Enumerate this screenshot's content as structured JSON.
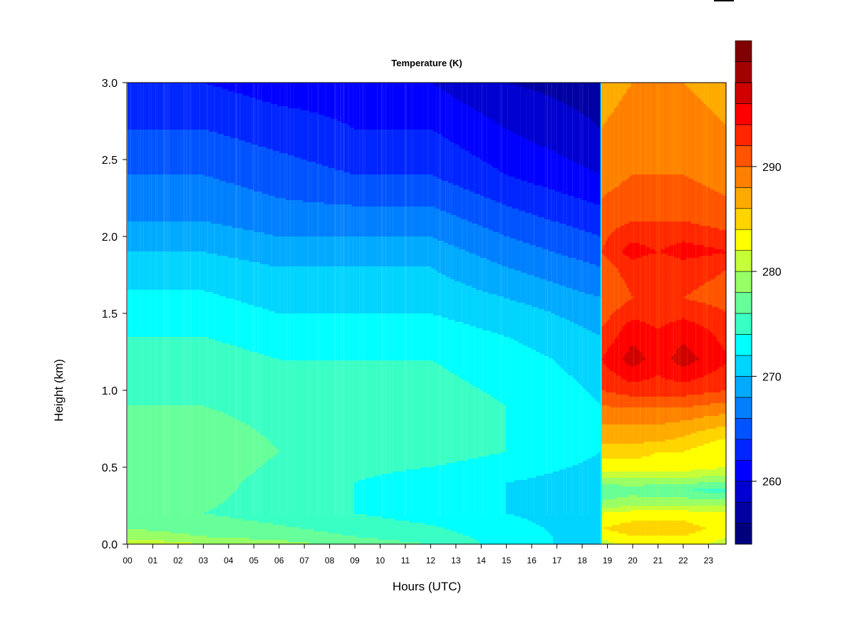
{
  "chart_data": {
    "type": "heatmap",
    "title": "Temperature (K)",
    "xlabel": "Hours (UTC)",
    "ylabel": "Height (km)",
    "x_ticks": [
      "00",
      "01",
      "02",
      "03",
      "04",
      "05",
      "06",
      "07",
      "08",
      "09",
      "10",
      "11",
      "12",
      "13",
      "14",
      "15",
      "16",
      "17",
      "18",
      "19",
      "20",
      "21",
      "22",
      "23"
    ],
    "y_ticks": [
      "0.0",
      "0.5",
      "1.0",
      "1.5",
      "2.0",
      "2.5",
      "3.0"
    ],
    "xlim": [
      0,
      23.85
    ],
    "ylim": [
      0,
      3.0
    ],
    "colorbar": {
      "ticks": [
        260,
        270,
        280,
        290
      ],
      "range": [
        254,
        298
      ],
      "step": 2,
      "colors": [
        "#00007f",
        "#0000a3",
        "#0000d0",
        "#0000ff",
        "#0026ff",
        "#0054ff",
        "#0080ff",
        "#00aaff",
        "#00d4ff",
        "#00ffff",
        "#3affc4",
        "#66ff99",
        "#99ff66",
        "#c4ff3a",
        "#ffff00",
        "#ffd400",
        "#ffaa00",
        "#ff8000",
        "#ff5400",
        "#ff2600",
        "#ff0000",
        "#d00000",
        " #a30000",
        "#7f0000"
      ]
    },
    "fields": [
      {
        "x_range": [
          0,
          18.75
        ],
        "heights_km": [
          0.0,
          0.05,
          0.2,
          0.4,
          0.6,
          0.9,
          1.2,
          1.5,
          1.8,
          2.1,
          2.4,
          2.7,
          3.0
        ],
        "time_h": [
          0,
          3,
          6,
          9,
          12,
          15,
          18.75
        ],
        "temperature_K": [
          [
            282,
            280,
            279,
            277,
            276,
            273,
            271
          ],
          [
            279,
            278,
            277,
            276,
            275,
            273,
            271
          ],
          [
            276,
            276,
            275,
            274,
            273,
            272,
            271
          ],
          [
            277,
            277,
            275,
            274,
            273,
            272,
            271
          ],
          [
            278,
            278,
            276,
            275,
            275,
            274,
            272
          ],
          [
            276,
            276,
            275,
            275,
            275,
            274,
            272
          ],
          [
            275,
            275,
            274,
            274,
            274,
            273,
            271
          ],
          [
            273,
            273,
            272,
            272,
            272,
            271,
            269
          ],
          [
            271,
            271,
            270,
            270,
            270,
            268,
            266
          ],
          [
            268,
            268,
            267,
            267,
            267,
            265,
            263
          ],
          [
            266,
            266,
            265,
            264,
            264,
            262,
            260
          ],
          [
            264,
            264,
            263,
            262,
            262,
            260,
            258
          ],
          [
            262,
            262,
            261,
            261,
            260,
            258,
            257
          ]
        ]
      },
      {
        "x_range": [
          18.75,
          23.85
        ],
        "heights_km": [
          0.0,
          0.1,
          0.2,
          0.25,
          0.35,
          0.45,
          0.5,
          0.6,
          0.7,
          0.85,
          1.0,
          1.2,
          1.4,
          1.6,
          1.8,
          1.9,
          2.1,
          2.4,
          2.7,
          3.0
        ],
        "time_h": [
          18.75,
          20,
          21,
          22,
          23.85
        ],
        "temperature_K": [
          [
            281,
            283,
            283,
            283,
            281
          ],
          [
            284,
            285,
            285,
            285,
            283
          ],
          [
            282,
            283,
            283,
            283,
            282
          ],
          [
            279,
            280,
            280,
            280,
            280
          ],
          [
            276,
            277,
            276,
            276,
            275
          ],
          [
            281,
            281,
            281,
            281,
            280
          ],
          [
            283,
            283,
            283,
            283,
            282
          ],
          [
            285,
            285,
            284,
            284,
            282
          ],
          [
            287,
            287,
            287,
            286,
            284
          ],
          [
            289,
            289,
            289,
            289,
            288
          ],
          [
            292,
            293,
            293,
            293,
            292
          ],
          [
            294,
            297,
            295,
            297,
            294
          ],
          [
            292,
            295,
            294,
            295,
            293
          ],
          [
            290,
            292,
            292,
            292,
            291
          ],
          [
            291,
            293,
            292,
            293,
            292
          ],
          [
            292,
            295,
            294,
            295,
            294
          ],
          [
            291,
            292,
            292,
            292,
            291
          ],
          [
            289,
            290,
            290,
            290,
            289
          ],
          [
            288,
            289,
            289,
            289,
            288
          ],
          [
            287,
            288,
            288,
            288,
            287
          ]
        ]
      }
    ]
  }
}
